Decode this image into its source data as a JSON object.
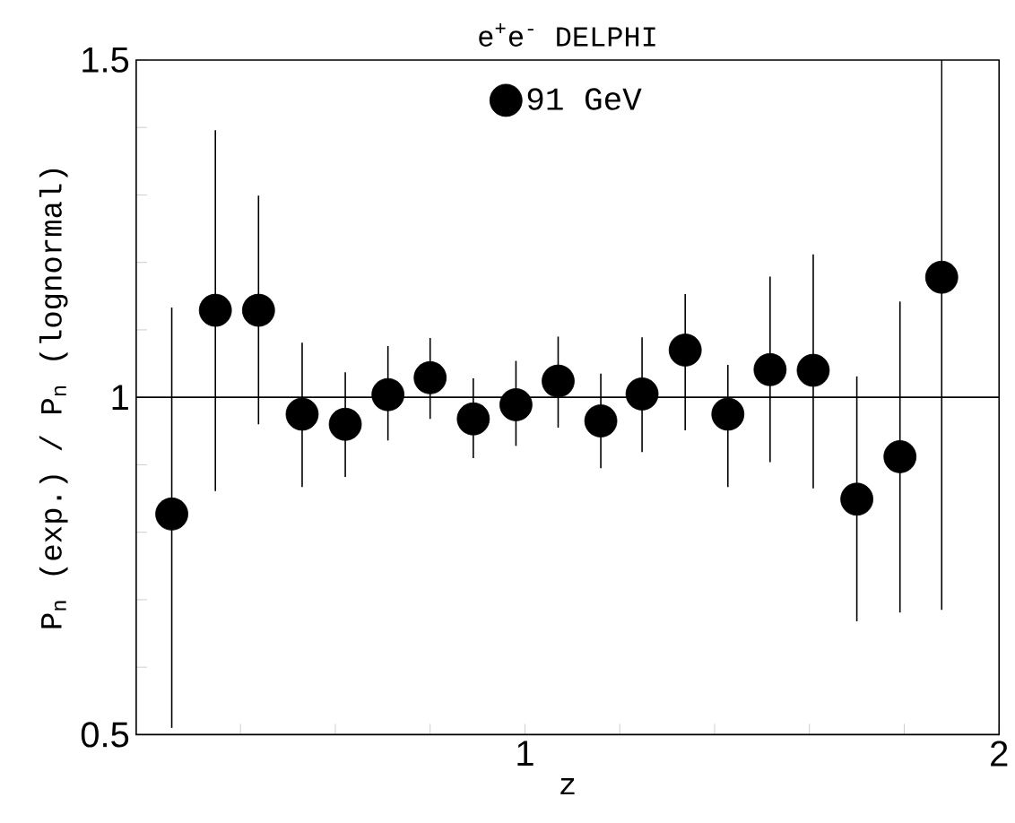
{
  "chart_data": {
    "type": "scatter",
    "title": "e$^{+}$e$^{-}$ DELPHI",
    "xlabel": "z",
    "ylabel": "P$_{n}$ (exp.) / P$_{n}$ (lognormal)",
    "x": [
      0.255,
      0.347,
      0.438,
      0.53,
      0.621,
      0.711,
      0.8,
      0.891,
      0.981,
      1.07,
      1.16,
      1.247,
      1.338,
      1.428,
      1.517,
      1.608,
      1.7,
      1.791,
      1.879
    ],
    "series": [
      {
        "name": "91 GeV",
        "color": "#000000",
        "values": [
          0.827,
          1.129,
          1.129,
          0.975,
          0.96,
          1.004,
          1.029,
          0.968,
          0.989,
          1.024,
          0.965,
          1.005,
          1.07,
          0.975,
          1.041,
          1.04,
          0.849,
          0.912,
          1.178
        ],
        "errors": [
          [
            0.51,
            1.133
          ],
          [
            0.861,
            1.396
          ],
          [
            0.96,
            1.299
          ],
          [
            0.867,
            1.081
          ],
          [
            0.882,
            1.037
          ],
          [
            0.936,
            1.076
          ],
          [
            0.968,
            1.088
          ],
          [
            0.91,
            1.028
          ],
          [
            0.928,
            1.054
          ],
          [
            0.955,
            1.09
          ],
          [
            0.895,
            1.035
          ],
          [
            0.919,
            1.089
          ],
          [
            0.951,
            1.153
          ],
          [
            0.867,
            1.048
          ],
          [
            0.904,
            1.179
          ],
          [
            0.865,
            1.212
          ],
          [
            0.668,
            1.031
          ],
          [
            0.681,
            1.142
          ],
          [
            0.685,
            1.5
          ]
        ]
      }
    ],
    "marker": "circle",
    "legend": "top",
    "ref_lines": [
      {
        "axis": "y",
        "value": 1,
        "color": "#000000"
      }
    ],
    "xlim": [
      0.18,
      2
    ],
    "ylim": [
      0.5,
      1.5
    ],
    "xticks": [
      {
        "value": 0.4,
        "label": null
      },
      {
        "value": 0.6,
        "label": null
      },
      {
        "value": 0.8,
        "label": null
      },
      1,
      {
        "value": 1.2,
        "label": null
      },
      {
        "value": 1.4,
        "label": null
      },
      {
        "value": 1.6,
        "label": null
      },
      {
        "value": 1.8,
        "label": null
      },
      2
    ],
    "yticks": [
      0.5,
      {
        "value": 0.6,
        "label": null
      },
      {
        "value": 0.7,
        "label": null
      },
      {
        "value": 0.8,
        "label": null
      },
      {
        "value": 0.9,
        "label": null
      },
      1,
      {
        "value": 1.1,
        "label": null
      },
      {
        "value": 1.2,
        "label": null
      },
      {
        "value": 1.3,
        "label": null
      },
      {
        "value": 1.4,
        "label": null
      },
      1.5
    ]
  }
}
